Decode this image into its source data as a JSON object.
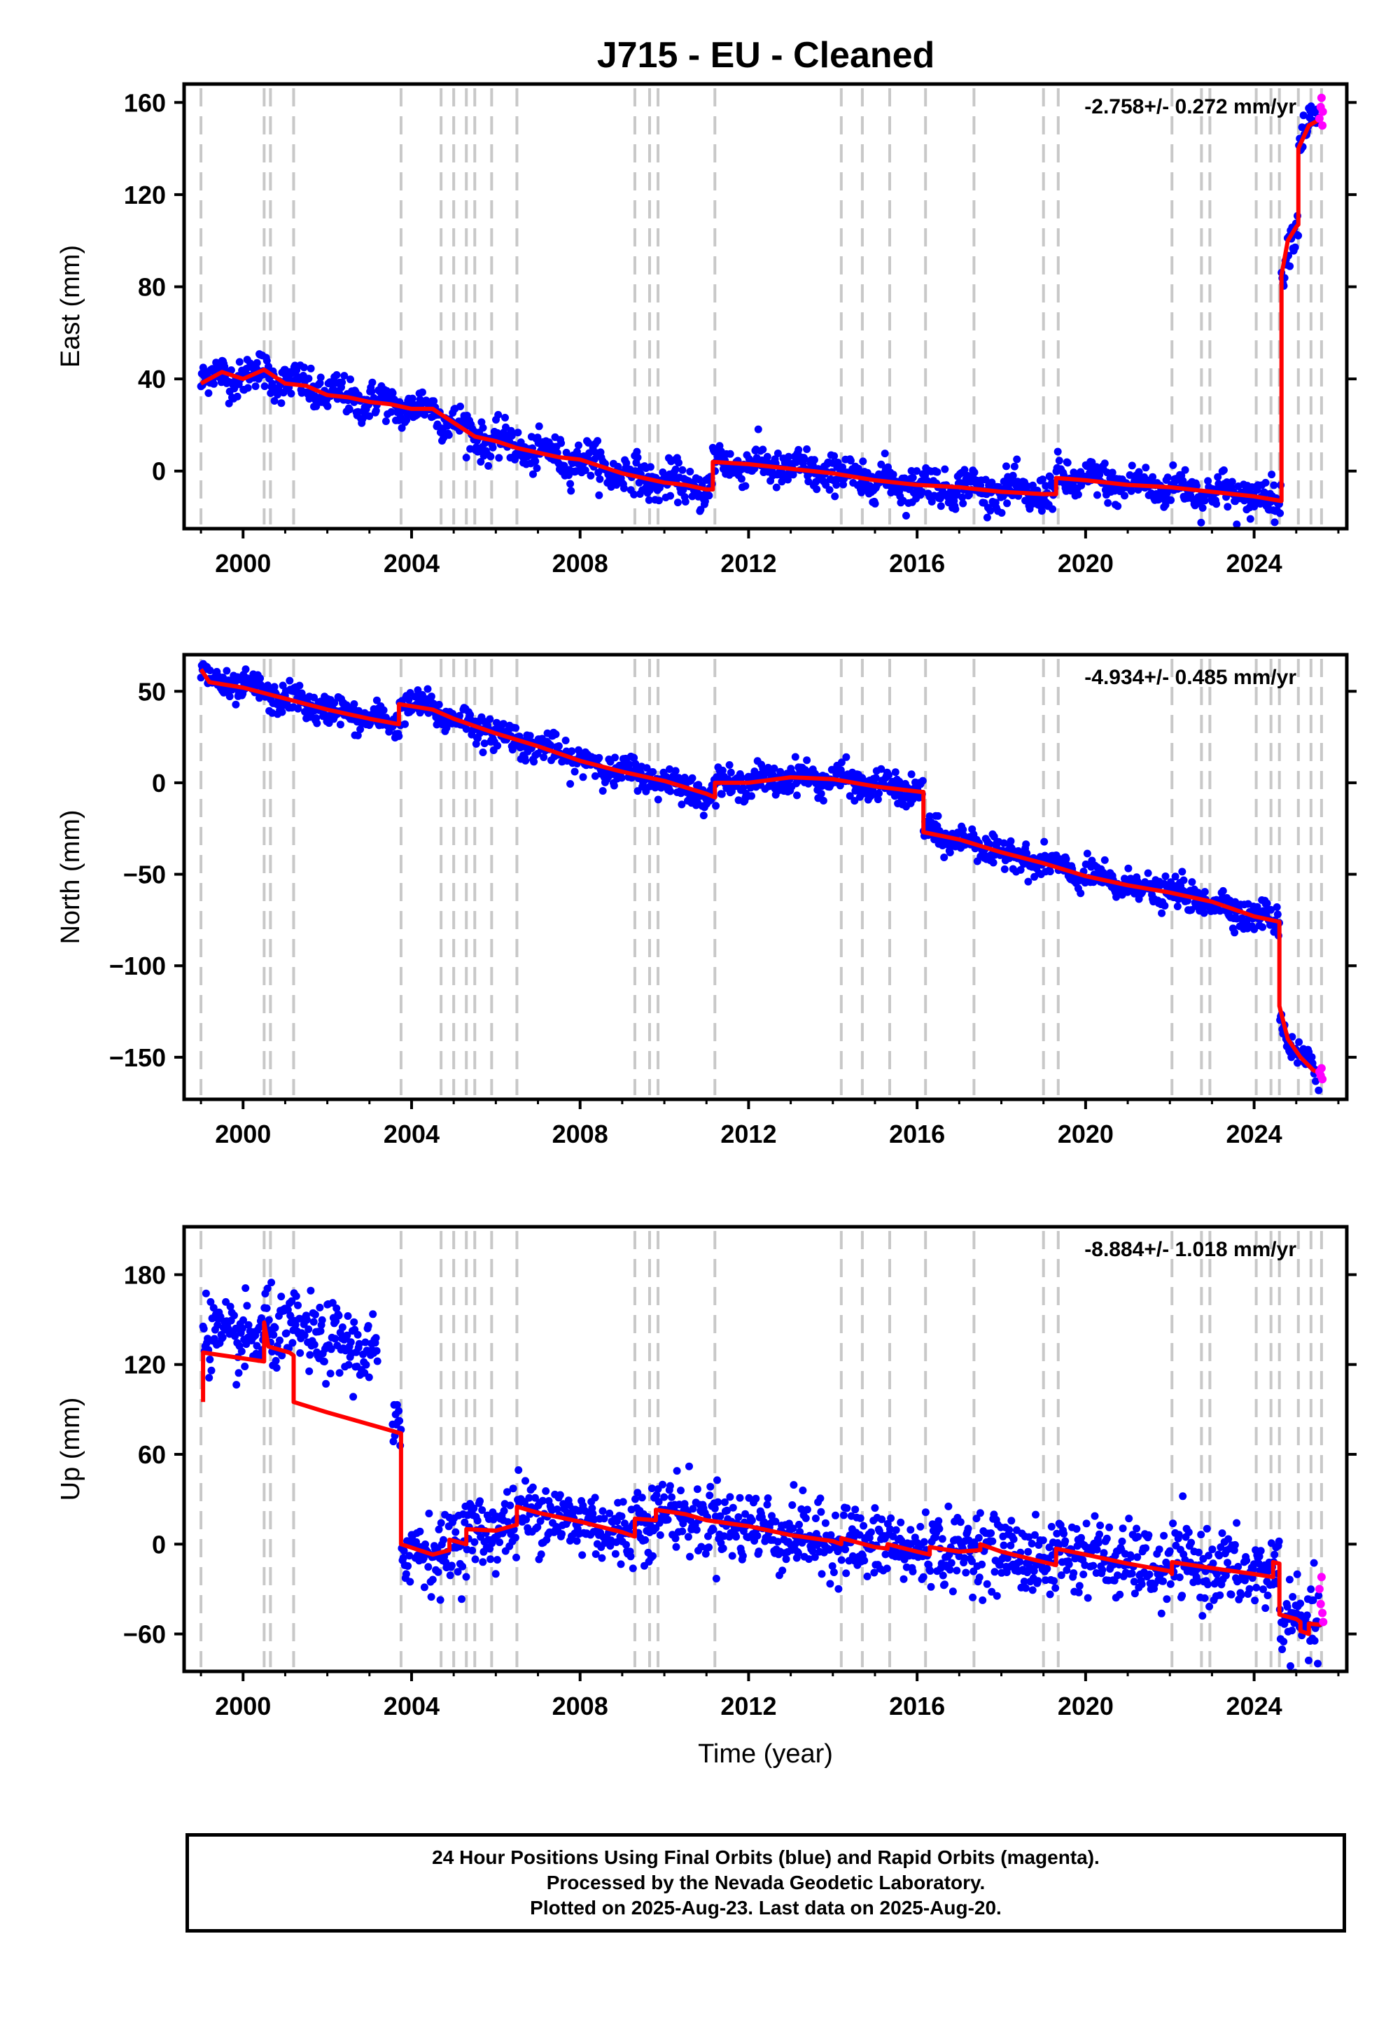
{
  "title": "J715  - EU - Cleaned",
  "footer": {
    "line1": "24 Hour Positions Using Final Orbits (blue) and Rapid Orbits (magenta).",
    "line2": "Processed by the Nevada Geodetic Laboratory.",
    "line3": "Plotted on 2025-Aug-23. Last data on 2025-Aug-20."
  },
  "colors": {
    "final": "#0000ff",
    "rapid": "#ff00ff",
    "model": "#ff0000",
    "events": "#c8c8c8"
  },
  "chart_data": [
    {
      "type": "scatter",
      "ylabel": "East (mm)",
      "xlabel": "",
      "rate": "-2.758+/- 0.272 mm/yr",
      "xlim": [
        1998.6,
        2026.2
      ],
      "ylim": [
        -25,
        168
      ],
      "xticks": [
        2000,
        2004,
        2008,
        2012,
        2016,
        2020,
        2024
      ],
      "yticks": [
        0,
        40,
        80,
        120,
        160
      ],
      "noise": 4,
      "model": [
        [
          1999.0,
          38
        ],
        [
          1999.5,
          43
        ],
        [
          2000.0,
          40
        ],
        [
          2000.5,
          44
        ],
        [
          2001.0,
          38
        ],
        [
          2001.5,
          37
        ],
        [
          2002.0,
          33
        ],
        [
          2002.5,
          32
        ],
        [
          2003.0,
          30
        ],
        [
          2003.5,
          29
        ],
        [
          2004.0,
          27
        ],
        [
          2004.5,
          27
        ],
        [
          2005.0,
          21
        ],
        [
          2005.5,
          15
        ],
        [
          2006.0,
          13
        ],
        [
          2006.5,
          10
        ],
        [
          2007.0,
          8
        ],
        [
          2007.5,
          6
        ],
        [
          2008.0,
          5
        ],
        [
          2008.5,
          2
        ],
        [
          2009.0,
          -1
        ],
        [
          2009.5,
          -3
        ],
        [
          2010.0,
          -5
        ],
        [
          2010.5,
          -6
        ],
        [
          2011.0,
          -8
        ],
        [
          2011.15,
          -8
        ],
        [
          2011.15,
          4
        ],
        [
          2012.0,
          3
        ],
        [
          2013.0,
          1
        ],
        [
          2014.0,
          -1
        ],
        [
          2015.0,
          -4
        ],
        [
          2016.0,
          -6
        ],
        [
          2017.0,
          -7
        ],
        [
          2018.0,
          -9
        ],
        [
          2019.0,
          -10
        ],
        [
          2019.3,
          -10
        ],
        [
          2019.3,
          -3
        ],
        [
          2020.0,
          -4
        ],
        [
          2021.0,
          -6
        ],
        [
          2022.0,
          -7
        ],
        [
          2023.0,
          -9
        ],
        [
          2024.0,
          -11
        ],
        [
          2024.65,
          -13
        ],
        [
          2024.65,
          85
        ],
        [
          2024.8,
          100
        ],
        [
          2025.0,
          106
        ],
        [
          2025.05,
          107
        ],
        [
          2025.05,
          140
        ],
        [
          2025.3,
          150
        ],
        [
          2025.6,
          153
        ]
      ],
      "rapid": [
        [
          2025.55,
          153
        ],
        [
          2025.58,
          158
        ],
        [
          2025.6,
          162
        ],
        [
          2025.62,
          150
        ],
        [
          2025.63,
          156
        ]
      ]
    },
    {
      "type": "scatter",
      "ylabel": "North (mm)",
      "xlabel": "",
      "rate": "-4.934+/- 0.485 mm/yr",
      "xlim": [
        1998.6,
        2026.2
      ],
      "ylim": [
        -173,
        70
      ],
      "xticks": [
        2000,
        2004,
        2008,
        2012,
        2016,
        2020,
        2024
      ],
      "yticks": [
        -150,
        -100,
        -50,
        0,
        50
      ],
      "noise": 4,
      "model": [
        [
          1999.0,
          62
        ],
        [
          1999.2,
          55
        ],
        [
          2000.0,
          52
        ],
        [
          2001.0,
          46
        ],
        [
          2002.0,
          40
        ],
        [
          2003.0,
          35
        ],
        [
          2003.7,
          32
        ],
        [
          2003.7,
          43
        ],
        [
          2004.5,
          40
        ],
        [
          2005.0,
          35
        ],
        [
          2006.0,
          27
        ],
        [
          2007.0,
          20
        ],
        [
          2008.0,
          12
        ],
        [
          2009.0,
          6
        ],
        [
          2010.0,
          1
        ],
        [
          2011.0,
          -6
        ],
        [
          2011.2,
          -8
        ],
        [
          2011.2,
          0
        ],
        [
          2012.0,
          0
        ],
        [
          2013.0,
          3
        ],
        [
          2014.0,
          2
        ],
        [
          2015.0,
          -2
        ],
        [
          2016.1,
          -5
        ],
        [
          2016.15,
          -5
        ],
        [
          2016.15,
          -27
        ],
        [
          2017.0,
          -31
        ],
        [
          2018.0,
          -38
        ],
        [
          2019.0,
          -44
        ],
        [
          2020.0,
          -51
        ],
        [
          2021.0,
          -56
        ],
        [
          2022.0,
          -60
        ],
        [
          2023.0,
          -65
        ],
        [
          2024.0,
          -73
        ],
        [
          2024.6,
          -76
        ],
        [
          2024.6,
          -122
        ],
        [
          2024.8,
          -140
        ],
        [
          2025.1,
          -150
        ],
        [
          2025.4,
          -157
        ],
        [
          2025.6,
          -159
        ]
      ],
      "rapid": [
        [
          2025.55,
          -158
        ],
        [
          2025.58,
          -160
        ],
        [
          2025.6,
          -156
        ],
        [
          2025.62,
          -162
        ]
      ]
    },
    {
      "type": "scatter",
      "ylabel": "Up (mm)",
      "xlabel": "Time (year)",
      "rate": "-8.884+/- 1.018 mm/yr",
      "xlim": [
        1998.6,
        2026.2
      ],
      "ylim": [
        -85,
        212
      ],
      "xticks": [
        2000,
        2004,
        2008,
        2012,
        2016,
        2020,
        2024
      ],
      "yticks": [
        -60,
        0,
        60,
        120,
        180
      ],
      "noise": 12,
      "model": [
        [
          1999.05,
          95
        ],
        [
          1999.05,
          128
        ],
        [
          2000.5,
          122
        ],
        [
          2000.5,
          148
        ],
        [
          2000.6,
          132
        ],
        [
          2001.1,
          128
        ],
        [
          2001.2,
          126
        ],
        [
          2001.2,
          95
        ],
        [
          2002.0,
          88
        ],
        [
          2003.0,
          80
        ],
        [
          2003.75,
          74
        ],
        [
          2003.75,
          0
        ],
        [
          2004.5,
          -7
        ],
        [
          2004.9,
          -4
        ],
        [
          2004.9,
          3
        ],
        [
          2005.3,
          0
        ],
        [
          2005.3,
          10
        ],
        [
          2006.0,
          9
        ],
        [
          2006.5,
          13
        ],
        [
          2006.5,
          25
        ],
        [
          2007.0,
          21
        ],
        [
          2008.0,
          15
        ],
        [
          2009.0,
          8
        ],
        [
          2009.3,
          5
        ],
        [
          2009.3,
          17
        ],
        [
          2009.8,
          16
        ],
        [
          2009.8,
          23
        ],
        [
          2010.5,
          20
        ],
        [
          2011.0,
          16
        ],
        [
          2012.0,
          12
        ],
        [
          2013.0,
          6
        ],
        [
          2014.0,
          2
        ],
        [
          2014.2,
          0
        ],
        [
          2014.2,
          4
        ],
        [
          2015.0,
          -2
        ],
        [
          2015.3,
          -3
        ],
        [
          2015.3,
          0
        ],
        [
          2016.0,
          -5
        ],
        [
          2016.3,
          -7
        ],
        [
          2016.3,
          -2
        ],
        [
          2017.0,
          -5
        ],
        [
          2017.5,
          -4
        ],
        [
          2017.5,
          0
        ],
        [
          2018.0,
          -5
        ],
        [
          2019.0,
          -12
        ],
        [
          2019.3,
          -14
        ],
        [
          2019.3,
          -3
        ],
        [
          2020.0,
          -7
        ],
        [
          2021.0,
          -13
        ],
        [
          2022.0,
          -18
        ],
        [
          2022.05,
          -20
        ],
        [
          2022.05,
          -12
        ],
        [
          2023.0,
          -16
        ],
        [
          2024.0,
          -20
        ],
        [
          2024.45,
          -22
        ],
        [
          2024.45,
          -12
        ],
        [
          2024.6,
          -13
        ],
        [
          2024.6,
          -47
        ],
        [
          2025.0,
          -50
        ],
        [
          2025.1,
          -52
        ],
        [
          2025.1,
          -58
        ],
        [
          2025.3,
          -60
        ],
        [
          2025.3,
          -53
        ],
        [
          2025.6,
          -54
        ]
      ],
      "rapid": [
        [
          2025.55,
          -30
        ],
        [
          2025.58,
          -40
        ],
        [
          2025.6,
          -22
        ],
        [
          2025.62,
          -46
        ],
        [
          2025.64,
          -52
        ]
      ]
    }
  ],
  "event_years": [
    1999.0,
    2000.5,
    2000.65,
    2001.2,
    2003.75,
    2004.7,
    2005.0,
    2005.3,
    2005.5,
    2005.9,
    2006.5,
    2009.3,
    2009.65,
    2009.85,
    2011.2,
    2014.2,
    2014.7,
    2015.35,
    2016.2,
    2017.35,
    2019.0,
    2019.35,
    2022.05,
    2022.75,
    2022.95,
    2024.05,
    2024.4,
    2024.6,
    2025.05,
    2025.35,
    2025.6
  ]
}
